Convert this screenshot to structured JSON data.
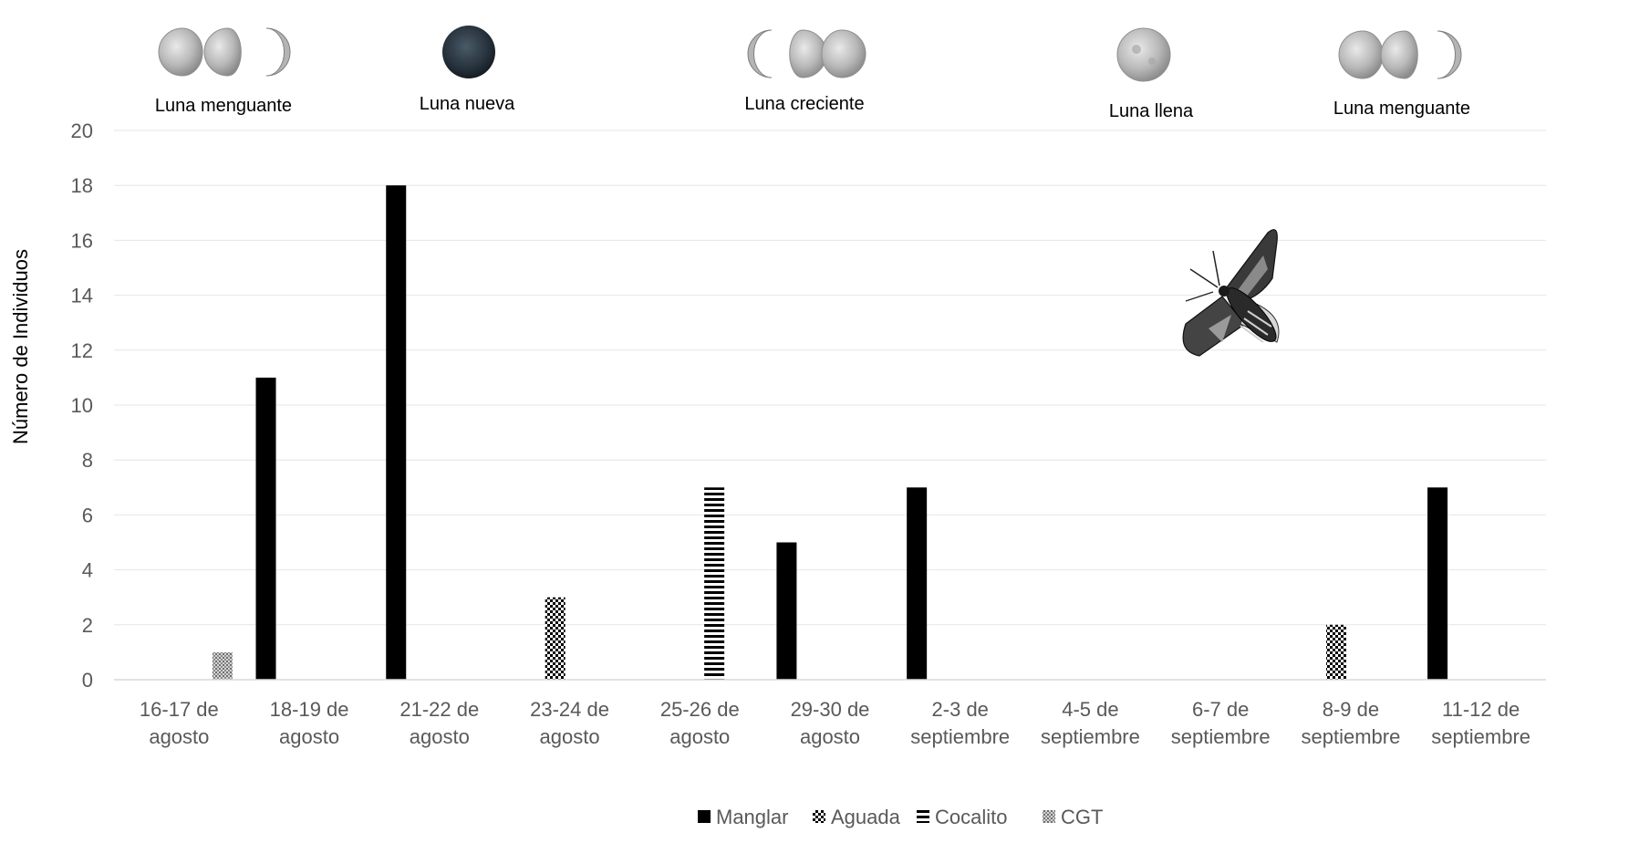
{
  "chart_data": {
    "type": "bar",
    "ylabel": "Número de Individuos",
    "xlabel": "",
    "ylim": [
      0,
      20
    ],
    "yticks": [
      "0",
      "2",
      "4",
      "6",
      "8",
      "10",
      "12",
      "14",
      "16",
      "18",
      "20"
    ],
    "grid": true,
    "legend_position": "bottom",
    "categories": [
      [
        "16-17 de",
        "agosto"
      ],
      [
        "18-19 de",
        "agosto"
      ],
      [
        "21-22 de",
        "agosto"
      ],
      [
        "23-24 de",
        "agosto"
      ],
      [
        "25-26 de",
        "agosto"
      ],
      [
        "29-30 de",
        "agosto"
      ],
      [
        "2-3 de",
        "septiembre"
      ],
      [
        "4-5 de",
        "septiembre"
      ],
      [
        "6-7 de",
        "septiembre"
      ],
      [
        "8-9 de",
        "septiembre"
      ],
      [
        "11-12 de",
        "septiembre"
      ]
    ],
    "series": [
      {
        "name": "Manglar",
        "pattern": "solid",
        "color": "#000000",
        "values": [
          0,
          11,
          18,
          0,
          0,
          5,
          7,
          0,
          0,
          0,
          7
        ]
      },
      {
        "name": "Aguada",
        "pattern": "checker",
        "color": "#000000",
        "values": [
          0,
          0,
          0,
          3,
          0,
          0,
          0,
          0,
          0,
          2,
          0
        ]
      },
      {
        "name": "Cocalito",
        "pattern": "horizontal-stripes",
        "color": "#000000",
        "values": [
          0,
          0,
          0,
          0,
          7,
          0,
          0,
          0,
          0,
          0,
          0
        ]
      },
      {
        "name": "CGT",
        "pattern": "dots",
        "color": "#7f7f7f",
        "values": [
          1,
          0,
          0,
          0,
          0,
          0,
          0,
          0,
          0,
          0,
          0
        ]
      }
    ]
  },
  "moon_phases": [
    {
      "label": "Luna menguante",
      "icons": [
        "waning-gibbous-moon-icon",
        "last-quarter-moon-icon",
        "waning-crescent-moon-icon"
      ]
    },
    {
      "label": "Luna nueva",
      "icons": [
        "new-moon-icon"
      ]
    },
    {
      "label": "Luna creciente",
      "icons": [
        "waxing-crescent-moon-icon",
        "first-quarter-moon-icon",
        "waxing-gibbous-moon-icon"
      ]
    },
    {
      "label": "Luna llena",
      "icons": [
        "full-moon-icon"
      ]
    },
    {
      "label": "Luna menguante",
      "icons": [
        "waning-gibbous-moon-icon",
        "last-quarter-moon-icon",
        "waning-crescent-moon-icon"
      ]
    }
  ],
  "illustration": {
    "icon": "sphinx-moth-icon"
  }
}
